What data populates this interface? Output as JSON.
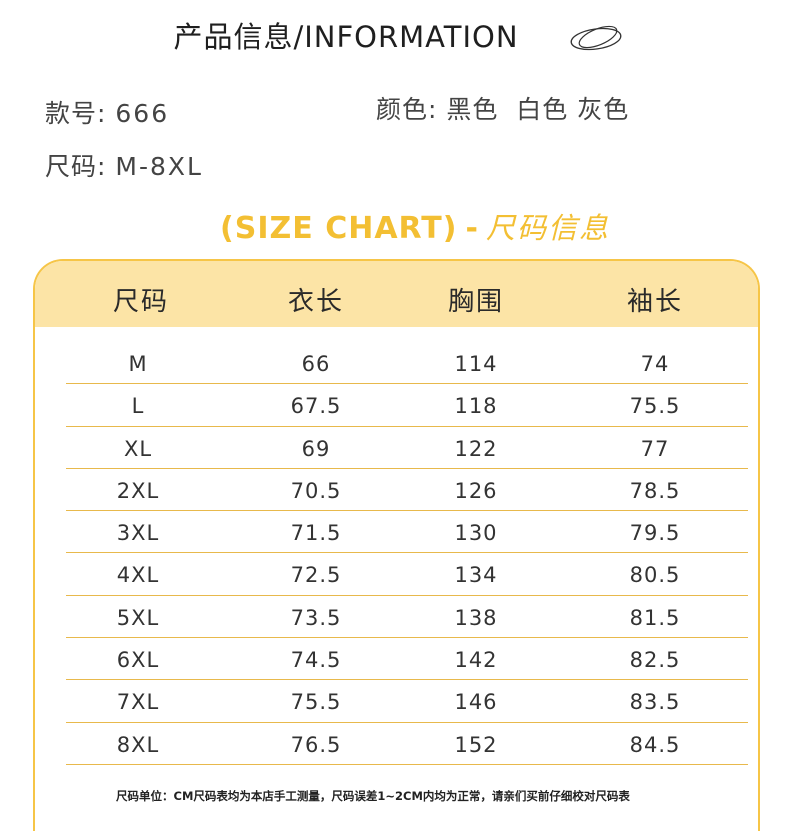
{
  "header": {
    "title": "产品信息/INFORMATION"
  },
  "info": {
    "style_label": "款号:",
    "style_value": "666",
    "color_label": "颜色:",
    "color_value": "黑色  白色 灰色",
    "size_label": "尺码:",
    "size_value": "M-8XL"
  },
  "chart_heading": {
    "english": "(SIZE CHART)",
    "dash": "-",
    "chinese": "尺码信息",
    "accent_color": "#f3bf33"
  },
  "table": {
    "columns": [
      "尺码",
      "衣长",
      "胸围",
      "袖长"
    ],
    "rows": [
      [
        "M",
        "66",
        "114",
        "74"
      ],
      [
        "L",
        "67.5",
        "118",
        "75.5"
      ],
      [
        "XL",
        "69",
        "122",
        "77"
      ],
      [
        "2XL",
        "70.5",
        "126",
        "78.5"
      ],
      [
        "3XL",
        "71.5",
        "130",
        "79.5"
      ],
      [
        "4XL",
        "72.5",
        "134",
        "80.5"
      ],
      [
        "5XL",
        "73.5",
        "138",
        "81.5"
      ],
      [
        "6XL",
        "74.5",
        "142",
        "82.5"
      ],
      [
        "7XL",
        "75.5",
        "146",
        "83.5"
      ],
      [
        "8XL",
        "76.5",
        "152",
        "84.5"
      ]
    ],
    "header_bg": "#fce4a6",
    "border_color": "#f6c547"
  },
  "note": "尺码单位：CM尺码表均为本店手工测量，尺码误差1~2CM内均为正常，请亲们买前仔细校对尺码表",
  "icons": {
    "decoration": "oval-scribble-icon"
  }
}
